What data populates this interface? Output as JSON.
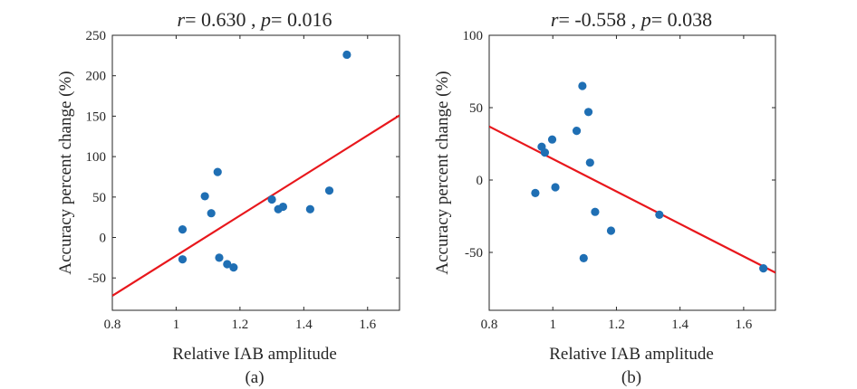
{
  "colors": {
    "points": "#1f6fb4",
    "fit_line": "#e8171c",
    "axes": "#262626"
  },
  "chart_data": [
    {
      "type": "scatter",
      "title_r_label": "r",
      "title_r_value": "= 0.630 , ",
      "title_p_label": "p",
      "title_p_value": "= 0.016",
      "xlabel": "Relative IAB amplitude",
      "ylabel": "Accuracy percent change (%)",
      "caption": "(a)",
      "xlim": [
        0.8,
        1.7
      ],
      "ylim": [
        -90,
        250
      ],
      "xticks": [
        0.8,
        1.0,
        1.2,
        1.4,
        1.6
      ],
      "xtick_labels": [
        "0.8",
        "1",
        "1.2",
        "1.4",
        "1.6"
      ],
      "yticks": [
        -50,
        0,
        50,
        100,
        150,
        200,
        250
      ],
      "ytick_labels": [
        "-50",
        "0",
        "50",
        "100",
        "150",
        "200",
        "250"
      ],
      "grid": false,
      "points": [
        {
          "x": 1.02,
          "y": 10
        },
        {
          "x": 1.02,
          "y": -27
        },
        {
          "x": 1.09,
          "y": 51
        },
        {
          "x": 1.11,
          "y": 30
        },
        {
          "x": 1.13,
          "y": 81
        },
        {
          "x": 1.135,
          "y": -25
        },
        {
          "x": 1.16,
          "y": -33
        },
        {
          "x": 1.18,
          "y": -37
        },
        {
          "x": 1.3,
          "y": 47
        },
        {
          "x": 1.32,
          "y": 35
        },
        {
          "x": 1.335,
          "y": 38
        },
        {
          "x": 1.42,
          "y": 35
        },
        {
          "x": 1.48,
          "y": 58
        },
        {
          "x": 1.535,
          "y": 226
        }
      ],
      "fit_line": {
        "x": [
          0.8,
          1.7
        ],
        "y": [
          -72,
          151
        ]
      }
    },
    {
      "type": "scatter",
      "title_r_label": "r",
      "title_r_value": "= -0.558 , ",
      "title_p_label": "p",
      "title_p_value": "= 0.038",
      "xlabel": "Relative IAB amplitude",
      "ylabel": "Accuracy percent change (%)",
      "caption": "(b)",
      "xlim": [
        0.8,
        1.7
      ],
      "ylim": [
        -90,
        100
      ],
      "xticks": [
        0.8,
        1.0,
        1.2,
        1.4,
        1.6
      ],
      "xtick_labels": [
        "0.8",
        "1",
        "1.2",
        "1.4",
        "1.6"
      ],
      "yticks": [
        -50,
        0,
        50,
        100
      ],
      "ytick_labels": [
        "-50",
        "0",
        "50",
        "100"
      ],
      "grid": false,
      "points": [
        {
          "x": 0.945,
          "y": -9
        },
        {
          "x": 0.965,
          "y": 23
        },
        {
          "x": 0.975,
          "y": 19
        },
        {
          "x": 0.998,
          "y": 28
        },
        {
          "x": 1.008,
          "y": -5
        },
        {
          "x": 1.075,
          "y": 34
        },
        {
          "x": 1.093,
          "y": 65
        },
        {
          "x": 1.097,
          "y": -54
        },
        {
          "x": 1.112,
          "y": 47
        },
        {
          "x": 1.117,
          "y": 12
        },
        {
          "x": 1.133,
          "y": -22
        },
        {
          "x": 1.183,
          "y": -35
        },
        {
          "x": 1.335,
          "y": -24
        },
        {
          "x": 1.662,
          "y": -61
        }
      ],
      "fit_line": {
        "x": [
          0.8,
          1.7
        ],
        "y": [
          37,
          -64
        ]
      }
    }
  ]
}
